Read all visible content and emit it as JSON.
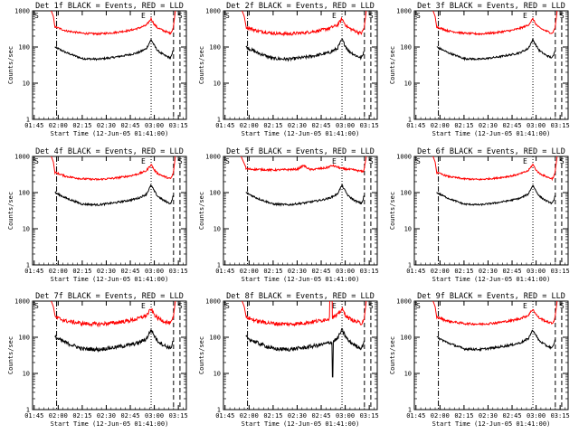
{
  "chart_data": {
    "type": "line",
    "panels": [
      {
        "title": "Det 1f BLACK = Events, RED = LLD",
        "noise": 0.06,
        "s8": false
      },
      {
        "title": "Det 2f BLACK = Events, RED = LLD",
        "noise": 0.1,
        "s8": false
      },
      {
        "title": "Det 3f BLACK = Events, RED = LLD",
        "noise": 0.06,
        "s8": false
      },
      {
        "title": "Det 4f BLACK = Events, RED = LLD",
        "noise": 0.06,
        "s8": false
      },
      {
        "title": "Det 5f BLACK = Events, RED = LLD",
        "noise": 0.06,
        "s8": false,
        "red5": true
      },
      {
        "title": "Det 6f BLACK = Events, RED = LLD",
        "noise": 0.05,
        "s8": false
      },
      {
        "title": "Det 7f BLACK = Events, RED = LLD",
        "noise": 0.12,
        "s8": false
      },
      {
        "title": "Det 8f BLACK = Events, RED = LLD",
        "noise": 0.12,
        "s8": true
      },
      {
        "title": "Det 9f BLACK = Events, RED = LLD",
        "noise": 0.07,
        "s8": false
      }
    ],
    "xlabel": "Start Time (12-Jun-05 01:41:00)",
    "ylabel": "Counts/sec",
    "x_ticks": [
      "01:45",
      "02:00",
      "02:15",
      "02:30",
      "02:45",
      "03:00",
      "03:15"
    ],
    "y_ticks": [
      "1",
      "10",
      "100",
      "1000"
    ],
    "y_scale": "log",
    "ylim": [
      1,
      1000
    ],
    "xlim_minutes": [
      104,
      200
    ],
    "markers": {
      "start": "S",
      "end": "E",
      "start2": "S"
    },
    "lines": {
      "dashdot_min": 119,
      "dotted_min": 178,
      "dashed_min": [
        192,
        196
      ]
    },
    "series": [
      {
        "name": "BLACK = Events",
        "color": "#000000",
        "profile": [
          [
            118,
            100
          ],
          [
            125,
            70
          ],
          [
            135,
            48
          ],
          [
            145,
            46
          ],
          [
            155,
            52
          ],
          [
            165,
            62
          ],
          [
            170,
            70
          ],
          [
            175,
            90
          ],
          [
            178,
            160
          ],
          [
            180,
            110
          ],
          [
            182,
            80
          ],
          [
            186,
            60
          ],
          [
            190,
            50
          ],
          [
            191,
            60
          ],
          [
            192,
            90
          ]
        ]
      },
      {
        "name": "RED = LLD",
        "color": "#ff0000",
        "profile": [
          [
            118,
            360
          ],
          [
            125,
            280
          ],
          [
            135,
            240
          ],
          [
            145,
            230
          ],
          [
            155,
            250
          ],
          [
            165,
            290
          ],
          [
            170,
            330
          ],
          [
            175,
            400
          ],
          [
            178,
            600
          ],
          [
            180,
            420
          ],
          [
            182,
            340
          ],
          [
            186,
            280
          ],
          [
            190,
            240
          ],
          [
            191,
            280
          ],
          [
            192,
            360
          ],
          [
            193,
            1100
          ]
        ]
      }
    ],
    "grid": false,
    "legend": "none"
  }
}
